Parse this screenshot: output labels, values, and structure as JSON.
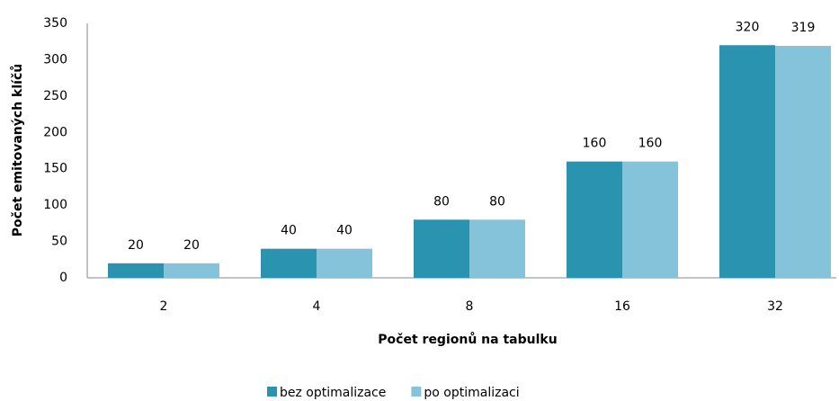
{
  "chart_data": {
    "type": "bar",
    "categories": [
      "2",
      "4",
      "8",
      "16",
      "32"
    ],
    "series": [
      {
        "name": "bez optimalizace",
        "color": "#2a93b0",
        "values": [
          20,
          40,
          80,
          160,
          320
        ]
      },
      {
        "name": "po optimalizaci",
        "color": "#85c3da",
        "values": [
          20,
          40,
          80,
          160,
          319
        ]
      }
    ],
    "x_label": "Počet regionů na tabulku",
    "y_label": "Počet emitovaných klíčů",
    "ylim": [
      0,
      350
    ],
    "yticks": [
      0,
      50,
      100,
      150,
      200,
      250,
      300,
      350
    ],
    "grid": false,
    "legend": "bottom"
  }
}
